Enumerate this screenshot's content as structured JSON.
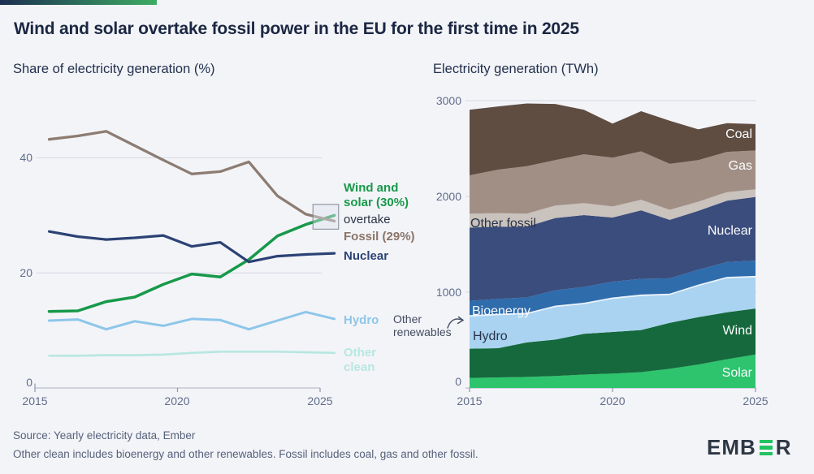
{
  "header": {
    "title": "Wind and solar overtake fossil power in the EU for the first time in 2025"
  },
  "theme": {
    "background": "#f3f4f8",
    "accent_gradient": [
      "#1d2f52",
      "#3dad63"
    ],
    "title_color": "#1b2742",
    "grid_color": "#d3d8e2",
    "axis_color": "#b9bfce",
    "tick_mark_color": "#8f97ab",
    "tick_text_color": "#606d8b"
  },
  "left_chart": {
    "subtitle": "Share of electricity generation (%)",
    "y_ticks": [
      "40",
      "20",
      "0"
    ],
    "x_ticks": [
      "2015",
      "2020",
      "2025"
    ],
    "annotations": {
      "wind_solar_line1": "Wind and",
      "wind_solar_line2": "solar (30%)",
      "overtake": "overtake",
      "fossil": "Fossil (29%)",
      "nuclear": "Nuclear",
      "hydro": "Hydro",
      "other_clean_line1": "Other",
      "other_clean_line2": "clean"
    }
  },
  "right_chart": {
    "subtitle": "Electricity generation (TWh)",
    "y_ticks": [
      "3000",
      "2000",
      "1000",
      "0"
    ],
    "x_ticks": [
      "2015",
      "2020",
      "2025"
    ],
    "band_labels": {
      "coal": "Coal",
      "gas": "Gas",
      "other_fossil": "Other fossil",
      "nuclear": "Nuclear",
      "bioenergy": "Bioenergy",
      "hydro": "Hydro",
      "wind": "Wind",
      "solar": "Solar",
      "other_renewables_line1": "Other",
      "other_renewables_line2": "renewables"
    }
  },
  "footer": {
    "source": "Source: Yearly electricity data, Ember",
    "note": "Other clean includes bioenergy and other renewables. Fossil includes coal, gas and other fossil.",
    "logo_prefix": "EMB",
    "logo_suffix": "R",
    "logo_green": "#21c45e"
  },
  "chart_data": [
    {
      "type": "line",
      "title": "Share of electricity generation (%)",
      "xlabel": "",
      "ylabel": "Share of electricity generation (%)",
      "x": [
        2015,
        2016,
        2017,
        2018,
        2019,
        2020,
        2021,
        2022,
        2023,
        2024,
        2025
      ],
      "x_plot_offset": 0.5,
      "xlim": [
        2015,
        2025
      ],
      "ylim": [
        0,
        50
      ],
      "grid_y": [
        20,
        40
      ],
      "x_axis_ticks": [
        2015,
        2020,
        2025
      ],
      "legend_position": "right-inline-labels",
      "series": [
        {
          "id": "wind_solar",
          "name": "Wind and solar",
          "color": "#17994a",
          "values": [
            13.3,
            13.4,
            15.0,
            15.8,
            18.0,
            19.8,
            19.3,
            22.3,
            26.4,
            28.4,
            30.0
          ]
        },
        {
          "id": "fossil",
          "name": "Fossil",
          "color": "#8d7c72",
          "values": [
            43.2,
            43.8,
            44.6,
            42.1,
            39.6,
            37.2,
            37.6,
            39.3,
            33.4,
            30.2,
            29.0
          ]
        },
        {
          "id": "nuclear",
          "name": "Nuclear",
          "color": "#2b4274",
          "values": [
            27.2,
            26.3,
            25.8,
            26.1,
            26.5,
            24.6,
            25.3,
            21.9,
            22.9,
            23.2,
            23.4
          ]
        },
        {
          "id": "hydro",
          "name": "Hydro",
          "color": "#8dc6ea",
          "values": [
            11.7,
            11.9,
            10.2,
            11.6,
            10.8,
            12.0,
            11.8,
            10.2,
            11.7,
            13.2,
            12.0
          ]
        },
        {
          "id": "other_clean",
          "name": "Other clean",
          "color": "#b7e7e1",
          "values": [
            5.6,
            5.6,
            5.7,
            5.7,
            5.8,
            6.1,
            6.3,
            6.3,
            6.3,
            6.2,
            6.1
          ]
        }
      ],
      "annotation": {
        "text": "Wind and solar (30%) overtake Fossil (29%)",
        "box_x_years": [
          2024.75,
          2025.65
        ],
        "box_y_values": [
          27.6,
          31.9
        ]
      }
    },
    {
      "type": "area",
      "title": "Electricity generation (TWh)",
      "xlabel": "",
      "ylabel": "Electricity generation (TWh)",
      "x": [
        2015,
        2016,
        2017,
        2018,
        2019,
        2020,
        2021,
        2022,
        2023,
        2024,
        2025
      ],
      "xlim": [
        2015,
        2025
      ],
      "ylim": [
        0,
        3000
      ],
      "grid_y": [
        1000,
        2000,
        3000
      ],
      "x_axis_ticks": [
        2015,
        2020,
        2025
      ],
      "stack_order": "bottom-to-top",
      "series": [
        {
          "id": "solar",
          "name": "Solar",
          "color": "#2dc46d",
          "values": [
            105,
            110,
            115,
            125,
            140,
            150,
            165,
            200,
            245,
            300,
            350
          ]
        },
        {
          "id": "wind",
          "name": "Wind",
          "color": "#15693c",
          "values": [
            305,
            305,
            360,
            380,
            425,
            435,
            440,
            480,
            495,
            490,
            480
          ]
        },
        {
          "id": "hydro",
          "name": "Hydro",
          "color": "#a9d3f0",
          "values": [
            335,
            345,
            295,
            340,
            310,
            345,
            355,
            290,
            325,
            355,
            325
          ]
        },
        {
          "id": "other_renewables",
          "name": "Other renewables",
          "color": "#e9f2fb",
          "values": [
            15,
            15,
            15,
            15,
            15,
            15,
            15,
            15,
            15,
            15,
            15
          ]
        },
        {
          "id": "bioenergy",
          "name": "Bioenergy",
          "color": "#2f6cac",
          "values": [
            150,
            155,
            160,
            160,
            165,
            165,
            165,
            160,
            155,
            155,
            160
          ]
        },
        {
          "id": "nuclear",
          "name": "Nuclear",
          "color": "#3b4d7c",
          "values": [
            765,
            755,
            740,
            755,
            750,
            670,
            715,
            610,
            615,
            640,
            665
          ]
        },
        {
          "id": "other_fossil",
          "name": "Other fossil",
          "color": "#cac2bc",
          "values": [
            145,
            140,
            135,
            130,
            125,
            115,
            110,
            105,
            95,
            90,
            80
          ]
        },
        {
          "id": "gas",
          "name": "Gas",
          "color": "#a18f85",
          "values": [
            400,
            455,
            495,
            475,
            510,
            510,
            505,
            480,
            435,
            420,
            405
          ]
        },
        {
          "id": "coal",
          "name": "Coal",
          "color": "#5f4d42",
          "values": [
            685,
            660,
            655,
            585,
            465,
            355,
            420,
            450,
            320,
            300,
            275
          ]
        }
      ]
    }
  ]
}
